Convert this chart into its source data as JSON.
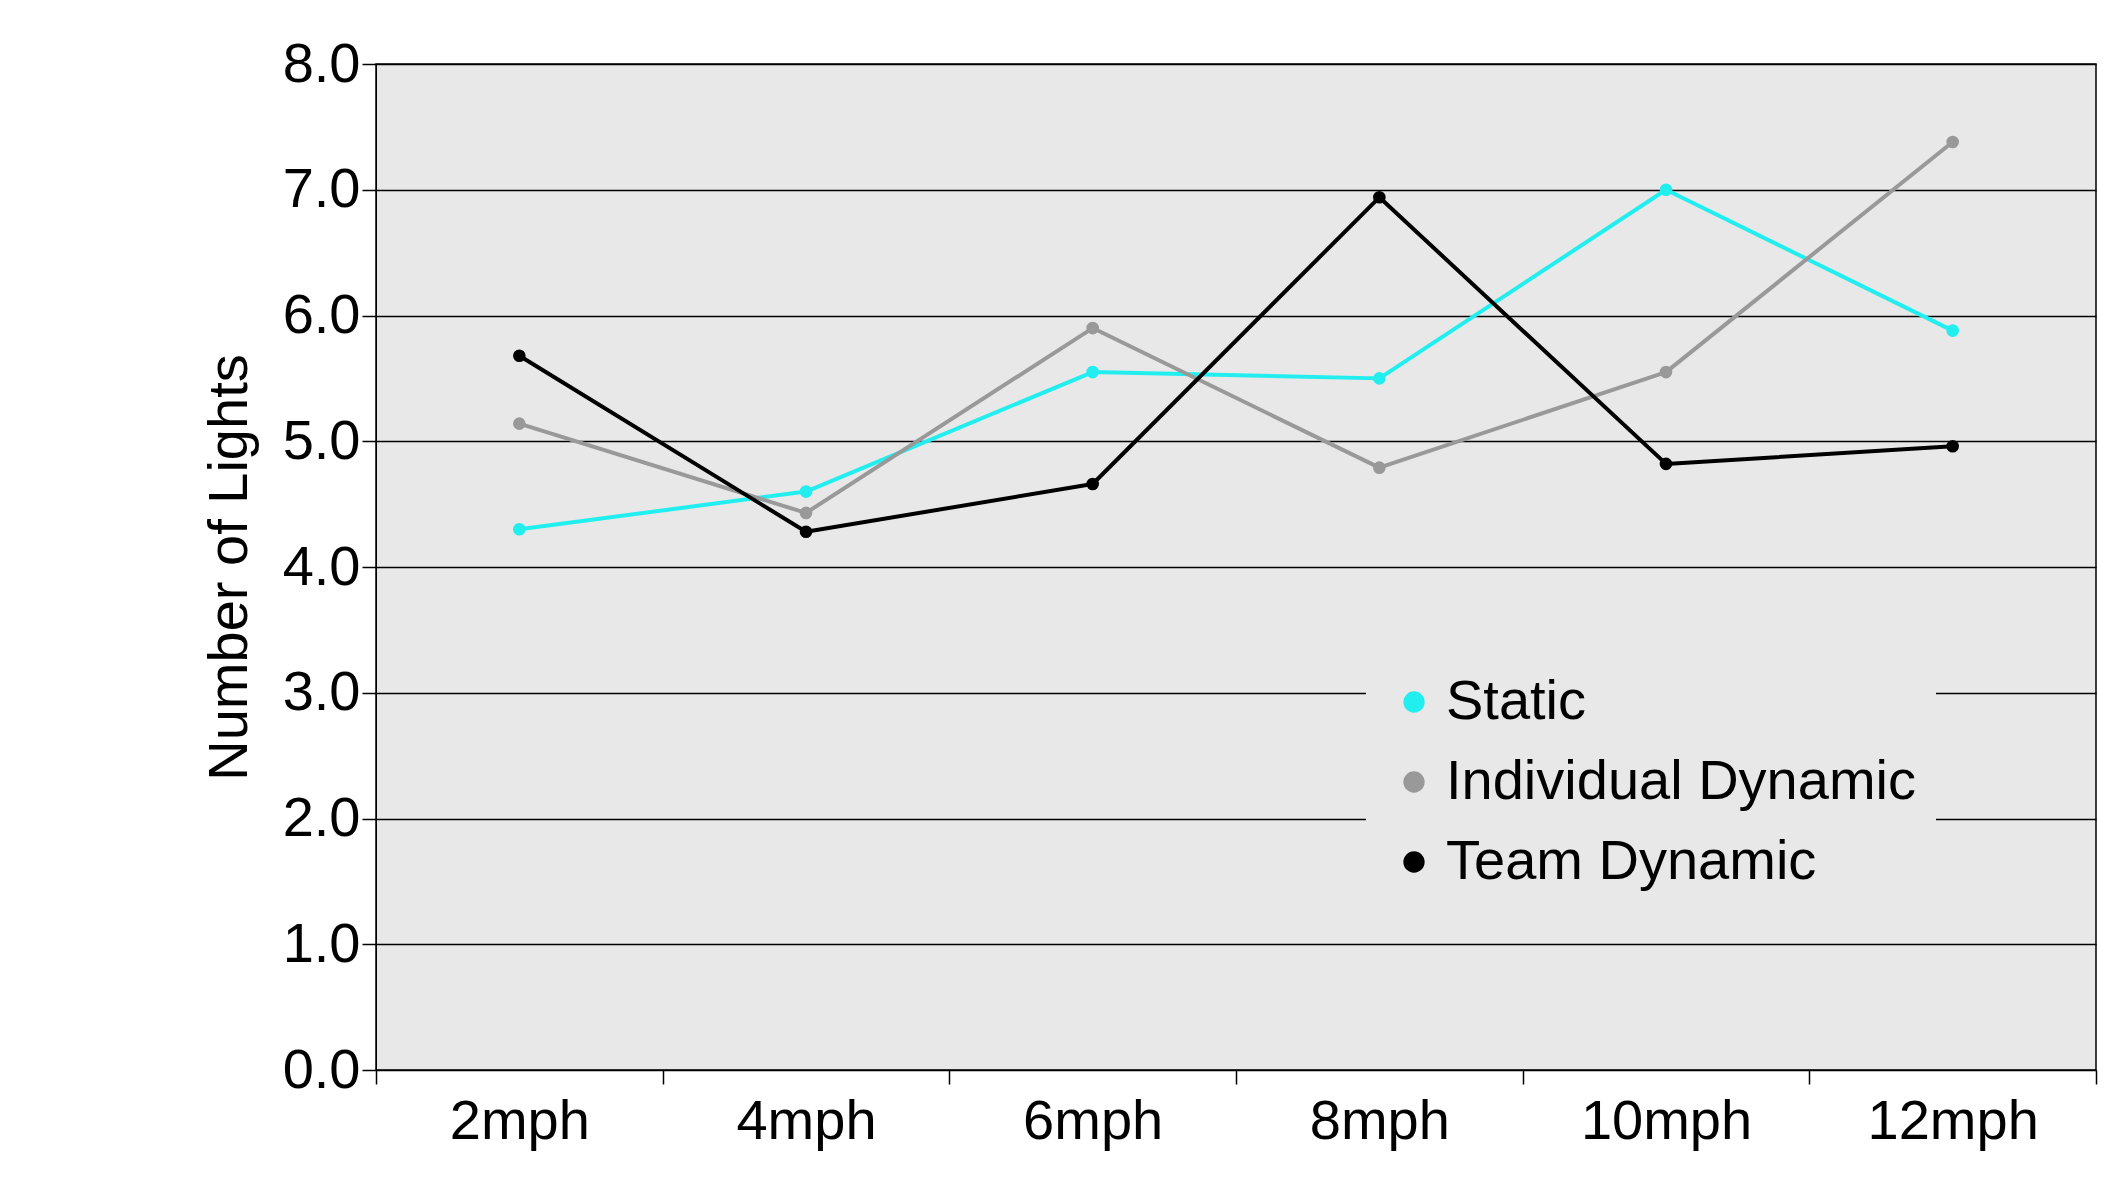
{
  "chart_data": {
    "type": "line",
    "ylabel": "Number of Lights",
    "categories": [
      "2mph",
      "4mph",
      "6mph",
      "8mph",
      "10mph",
      "12mph"
    ],
    "series": [
      {
        "name": "Static",
        "color": "#22eef0",
        "values": [
          4.3,
          4.6,
          5.55,
          5.5,
          7.0,
          5.88
        ]
      },
      {
        "name": "Individual Dynamic",
        "color": "#999999",
        "values": [
          5.14,
          4.43,
          5.9,
          4.79,
          5.55,
          7.38
        ]
      },
      {
        "name": "Team Dynamic",
        "color": "#000000",
        "values": [
          5.68,
          4.28,
          4.66,
          6.94,
          4.82,
          4.96
        ]
      }
    ],
    "ylim": [
      0,
      8
    ],
    "yticks": [
      {
        "value": 0,
        "label": "0.0"
      },
      {
        "value": 1,
        "label": "1.0"
      },
      {
        "value": 2,
        "label": "2.0"
      },
      {
        "value": 3,
        "label": "3.0"
      },
      {
        "value": 4,
        "label": "4.0"
      },
      {
        "value": 5,
        "label": "5.0"
      },
      {
        "value": 6,
        "label": "6.0"
      },
      {
        "value": 7,
        "label": "7.0"
      },
      {
        "value": 8,
        "label": "8.0"
      }
    ],
    "grid": "y",
    "legend": "bottom right",
    "marker": "circle",
    "line_style": "solid"
  }
}
